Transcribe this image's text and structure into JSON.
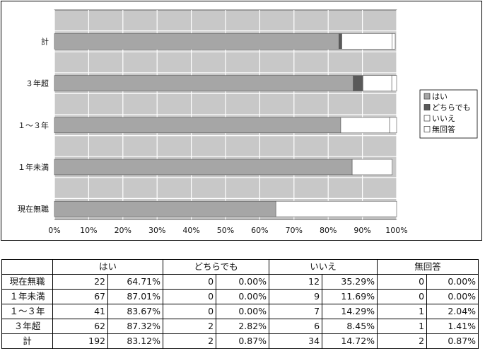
{
  "chart_data": {
    "type": "bar",
    "orientation": "horizontal",
    "stacked": true,
    "percent": true,
    "categories": [
      "計",
      "３年超",
      "１～３年",
      "１年未満",
      "現在無職"
    ],
    "series": [
      {
        "name": "はい",
        "values": [
          83.12,
          87.32,
          83.67,
          87.01,
          64.71
        ],
        "color": "#a6a6a6"
      },
      {
        "name": "どちらでも",
        "values": [
          0.87,
          2.82,
          0.0,
          0.0,
          0.0
        ],
        "color": "#5a5a5a"
      },
      {
        "name": "いいえ",
        "values": [
          14.72,
          8.45,
          14.29,
          11.69,
          35.29
        ],
        "color": "#ffffff"
      },
      {
        "name": "無回答",
        "values": [
          0.87,
          1.41,
          2.04,
          0.0,
          0.0
        ],
        "color": "#ffffff"
      }
    ],
    "x_ticks": [
      "0%",
      "10%",
      "20%",
      "30%",
      "40%",
      "50%",
      "60%",
      "70%",
      "80%",
      "90%",
      "100%"
    ],
    "xlim": [
      0,
      100
    ],
    "grid": true,
    "plot_background": "#c8c8c8",
    "legend_position": "right"
  },
  "table": {
    "headers": [
      "はい",
      "どちらでも",
      "いいえ",
      "無回答"
    ],
    "rows": [
      {
        "label": "現在無職",
        "cells": [
          "22",
          "64.71%",
          "0",
          "0.00%",
          "12",
          "35.29%",
          "0",
          "0.00%"
        ]
      },
      {
        "label": "１年未満",
        "cells": [
          "67",
          "87.01%",
          "0",
          "0.00%",
          "9",
          "11.69%",
          "0",
          "0.00%"
        ]
      },
      {
        "label": "１～３年",
        "cells": [
          "41",
          "83.67%",
          "0",
          "0.00%",
          "7",
          "14.29%",
          "1",
          "2.04%"
        ]
      },
      {
        "label": "３年超",
        "cells": [
          "62",
          "87.32%",
          "2",
          "2.82%",
          "6",
          "8.45%",
          "1",
          "1.41%"
        ]
      },
      {
        "label": "計",
        "cells": [
          "192",
          "83.12%",
          "2",
          "0.87%",
          "34",
          "14.72%",
          "2",
          "0.87%"
        ]
      }
    ]
  }
}
